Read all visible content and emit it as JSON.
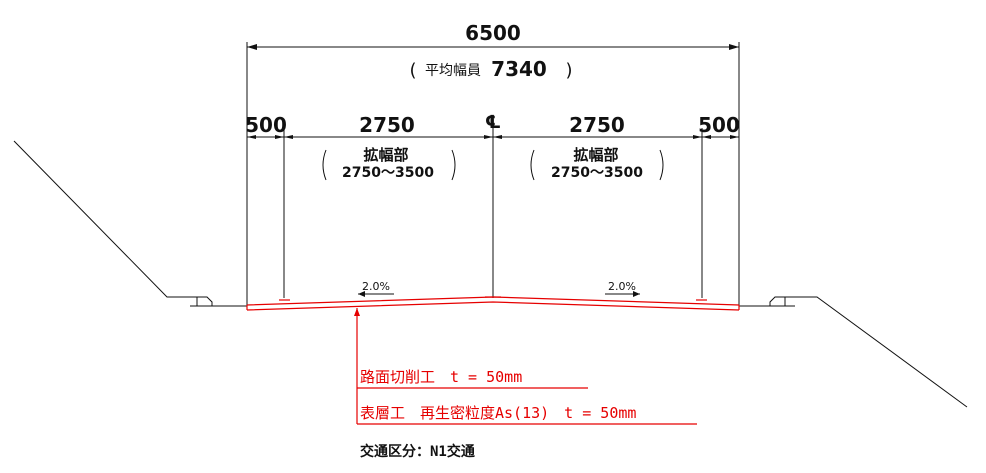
{
  "dimensions": {
    "total": "6500",
    "average_width_label": "平均幅員",
    "average_width_value": "7340",
    "left_shoulder": "500",
    "left_lane": "2750",
    "right_lane": "2750",
    "right_shoulder": "500",
    "centerline_symbol": "℄",
    "widening_label": "拡幅部",
    "widening_range": "2750〜3500"
  },
  "slopes": {
    "left": "2.0%",
    "right": "2.0%"
  },
  "callouts": {
    "milling": "路面切削工　t = 50mm",
    "surface": "表層工　再生密粒度As(13)　t = 50mm"
  },
  "traffic_class": "交通区分：N1交通",
  "colors": {
    "line": "#111111",
    "pavement": "#e60000"
  }
}
